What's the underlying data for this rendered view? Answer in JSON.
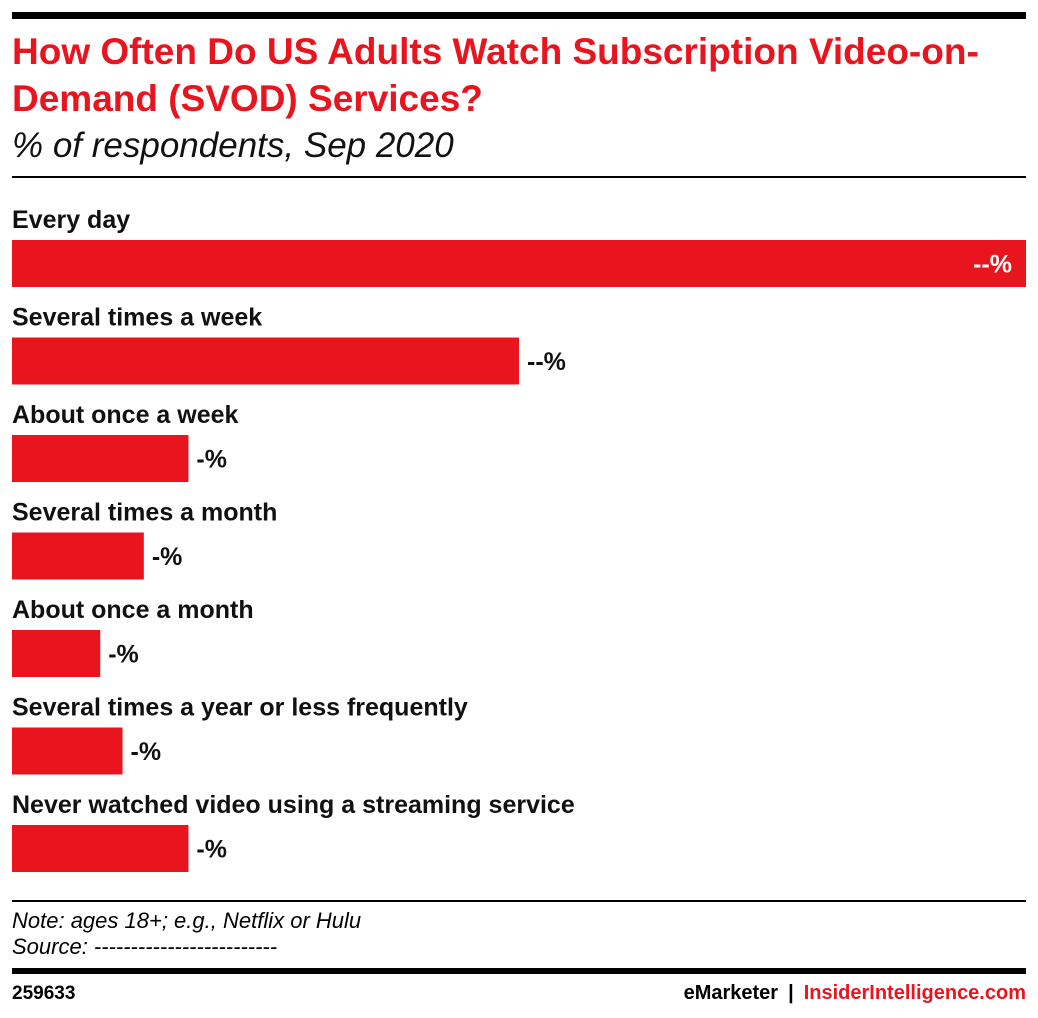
{
  "header": {
    "title": "How Often Do US Adults Watch Subscription Video-on-Demand (SVOD) Services?",
    "subtitle": "% of respondents, Sep 2020"
  },
  "chart_data": {
    "type": "bar",
    "orientation": "horizontal",
    "title": "How Often Do US Adults Watch Subscription Video-on-Demand (SVOD) Services?",
    "subtitle": "% of respondents, Sep 2020",
    "categories": [
      "Every day",
      "Several times a week",
      "About once a week",
      "Several times a month",
      "About once a month",
      "Several times a year or less frequently",
      "Never watched video using a streaming service"
    ],
    "values": [
      100,
      50,
      17.4,
      13,
      8.7,
      10.9,
      17.4
    ],
    "value_labels": [
      "--%",
      "--%",
      "-%",
      "-%",
      "-%",
      "-%",
      "-%"
    ],
    "xlim": [
      0,
      100
    ],
    "bar_color": "#e8141e",
    "grid": false,
    "legend": "none"
  },
  "footer": {
    "note": "Note: ages 18+; e.g., Netflix or Hulu",
    "source": "Source: -------------------------",
    "chart_id": "259633",
    "brand_emarketer": "eMarketer",
    "brand_separator": "|",
    "brand_insider": "InsiderIntelligence.com"
  },
  "colors": {
    "accent": "#e8141e",
    "text": "#000000"
  }
}
